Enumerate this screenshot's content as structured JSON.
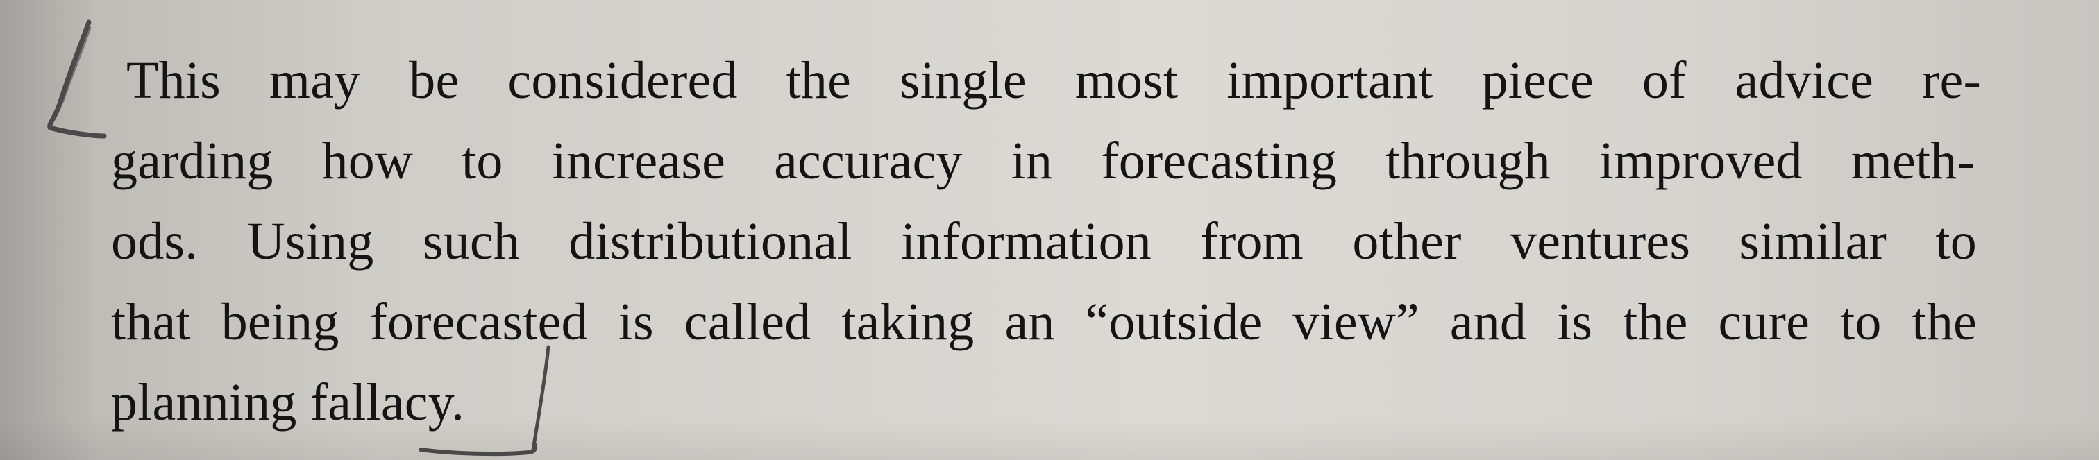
{
  "paragraph": {
    "lines": [
      "This may be considered the single most important piece of advice re-",
      "garding how to increase accuracy in forecasting through improved meth-",
      "ods. Using such distributional information from other ventures similar to",
      "that being forecasted is called taking an “outside view” and is the cure to the",
      "planning fallacy."
    ]
  },
  "annotations": {
    "ink_color": "#4b4a4a",
    "left_bracket": "pen-bracket-icon",
    "bottom_underline": "pen-underline-icon"
  }
}
